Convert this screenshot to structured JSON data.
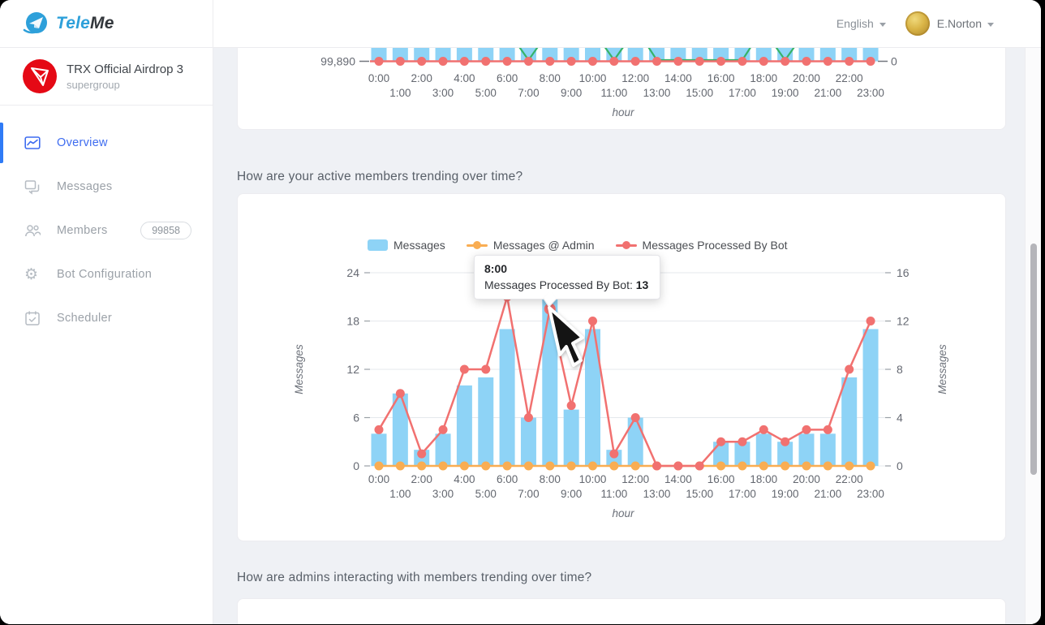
{
  "brand": {
    "logo_text_primary": "Tele",
    "logo_text_secondary": "Me"
  },
  "topbar": {
    "language_label": "English",
    "user_name": "E.Norton"
  },
  "sidebar": {
    "group_name": "TRX Official Airdrop 3",
    "group_type": "supergroup",
    "items": [
      {
        "label": "Overview",
        "active": true
      },
      {
        "label": "Messages"
      },
      {
        "label": "Members",
        "badge": "99858"
      },
      {
        "label": "Bot Configuration"
      },
      {
        "label": "Scheduler"
      }
    ]
  },
  "sections": {
    "active_members_title": "How are your active members trending over time?",
    "admins_title": "How are admins interacting with members trending over time?"
  },
  "tooltip": {
    "title": "8:00",
    "series_label": "Messages Processed By Bot: ",
    "value": "13",
    "x_index": 8
  },
  "chart_data": [
    {
      "type": "bar+line",
      "note": "members-count trend chart, only bottom sliver visible above scroll viewport",
      "x": [
        "0:00",
        "1:00",
        "2:00",
        "3:00",
        "4:00",
        "5:00",
        "6:00",
        "7:00",
        "8:00",
        "9:00",
        "10:00",
        "11:00",
        "12:00",
        "13:00",
        "14:00",
        "15:00",
        "16:00",
        "17:00",
        "18:00",
        "19:00",
        "20:00",
        "21:00",
        "22:00",
        "23:00"
      ],
      "xlabel": "hour",
      "left_axis_tick": "99,890",
      "right_axis_tick": "0",
      "bar_color": "#8ed3f6",
      "baseline_color": "#f17170",
      "green_color": "#36b368",
      "baseline_value": 0,
      "bars_extend_above_view": true,
      "green_segments": [
        {
          "type": "v",
          "hour": 7
        },
        {
          "type": "v",
          "hour": 11
        },
        {
          "type": "flat",
          "from": 13,
          "to": 17
        },
        {
          "type": "v",
          "hour": 19
        }
      ]
    },
    {
      "type": "bar+line",
      "title": "How are your active members trending over time?",
      "categories": [
        "0:00",
        "1:00",
        "2:00",
        "3:00",
        "4:00",
        "5:00",
        "6:00",
        "7:00",
        "8:00",
        "9:00",
        "10:00",
        "11:00",
        "12:00",
        "13:00",
        "14:00",
        "15:00",
        "16:00",
        "17:00",
        "18:00",
        "19:00",
        "20:00",
        "21:00",
        "22:00",
        "23:00"
      ],
      "xlabel": "hour",
      "left_axis": {
        "label": "Messages",
        "ticks": [
          0,
          6,
          12,
          18,
          24
        ],
        "max": 24
      },
      "right_axis": {
        "label": "Messages",
        "ticks": [
          0,
          4,
          8,
          12,
          16
        ],
        "max": 16
      },
      "grid": true,
      "legend_position": "top",
      "series": [
        {
          "name": "Messages",
          "type": "bar",
          "axis": "left",
          "color": "#8ed3f6",
          "values": [
            4,
            9,
            2,
            4,
            10,
            11,
            17,
            6,
            21,
            7,
            17,
            2,
            6,
            0,
            0,
            0,
            3,
            3,
            4,
            3,
            4,
            4,
            11,
            17
          ]
        },
        {
          "name": "Messages @ Admin",
          "type": "line",
          "axis": "right",
          "color": "#f9ad52",
          "values": [
            0,
            0,
            0,
            0,
            0,
            0,
            0,
            0,
            0,
            0,
            0,
            0,
            0,
            0,
            0,
            0,
            0,
            0,
            0,
            0,
            0,
            0,
            0,
            0
          ]
        },
        {
          "name": "Messages Processed By Bot",
          "type": "line",
          "axis": "right",
          "color": "#f17170",
          "values": [
            3,
            6,
            1,
            3,
            8,
            8,
            14,
            4,
            13,
            5,
            12,
            1,
            4,
            0,
            0,
            0,
            2,
            2,
            3,
            2,
            3,
            3,
            8,
            12
          ]
        }
      ]
    }
  ]
}
